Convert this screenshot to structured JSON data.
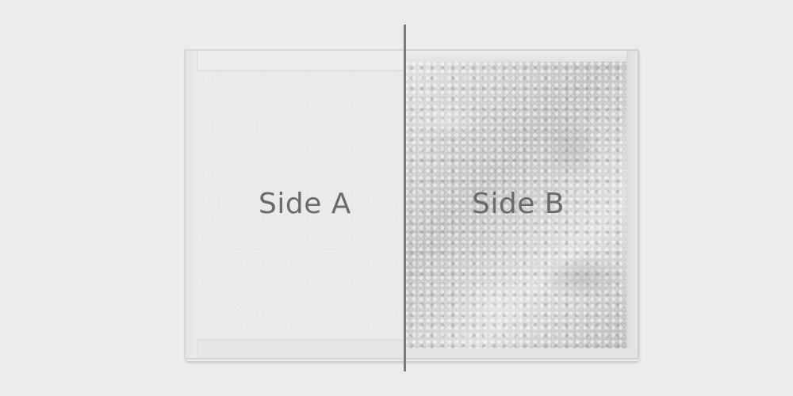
{
  "labels": {
    "side_a": "Side A",
    "side_b": "Side B"
  },
  "colors": {
    "background": "#ececec",
    "label_text": "#6b6b6b",
    "divider": "#7a7a7a"
  }
}
